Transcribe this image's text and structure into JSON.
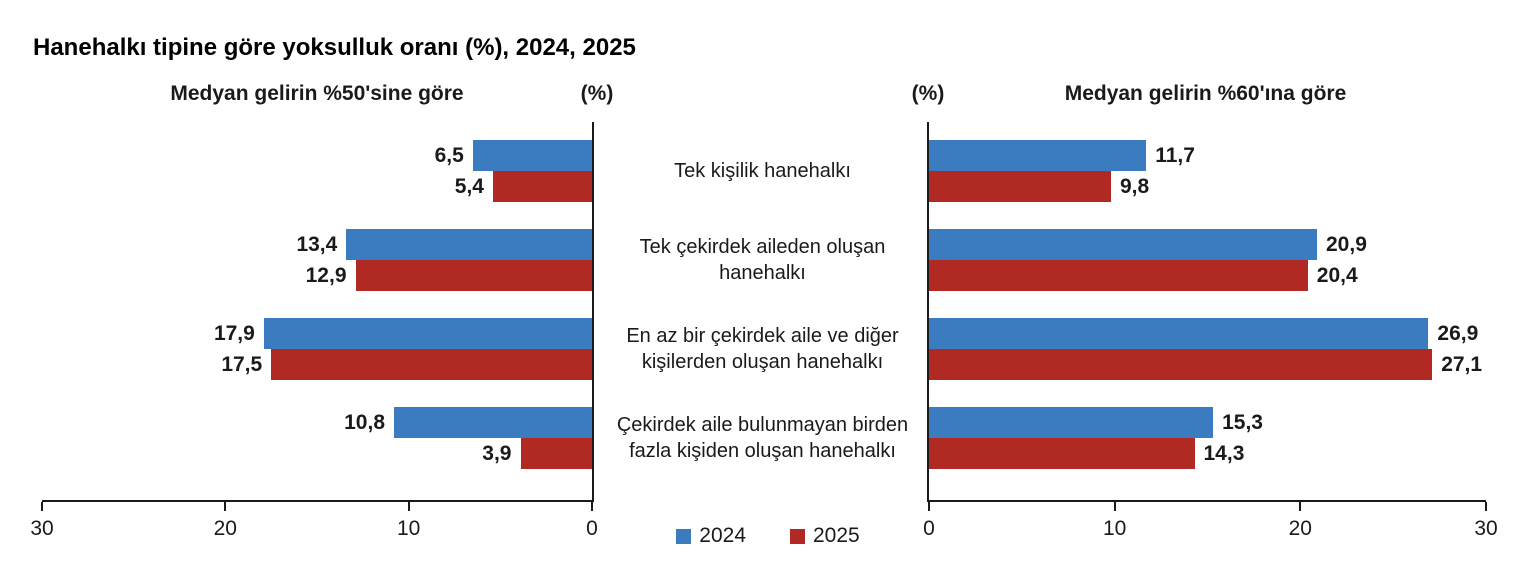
{
  "title": "Hanehalkı tipine göre yoksulluk oranı (%), 2024, 2025",
  "colors": {
    "series_2024": "#3B7BC0",
    "series_2025": "#B02A23",
    "axis": "#1a1a1a"
  },
  "categories": [
    "Tek kişilik hanehalkı",
    "Tek çekirdek aileden oluşan hanehalkı",
    "En az bir çekirdek aile ve diğer kişilerden oluşan hanehalkı",
    "Çekirdek aile bulunmayan birden fazla kişiden oluşan hanehalkı"
  ],
  "left_chart": {
    "subtitle": "Medyan gelirin %50'sine göre",
    "unit_label": "(%)"
  },
  "right_chart": {
    "subtitle": "Medyan gelirin %60'ına göre",
    "unit_label": "(%)"
  },
  "legend": {
    "items": [
      {
        "label": "2024",
        "color": "#3B7BC0"
      },
      {
        "label": "2025",
        "color": "#B02A23"
      }
    ]
  },
  "chart_data": [
    {
      "type": "bar",
      "orientation": "horizontal",
      "direction": "right-to-left",
      "title": "Medyan gelirin %50'sine göre",
      "unit": "(%)",
      "categories": [
        "Tek kişilik hanehalkı",
        "Tek çekirdek aileden oluşan hanehalkı",
        "En az bir çekirdek aile ve diğer kişilerden oluşan hanehalkı",
        "Çekirdek aile bulunmayan birden fazla kişiden oluşan hanehalkı"
      ],
      "series": [
        {
          "name": "2024",
          "color": "#3B7BC0",
          "values": [
            6.5,
            13.4,
            17.9,
            10.8
          ],
          "labels": [
            "6,5",
            "13,4",
            "17,9",
            "10,8"
          ]
        },
        {
          "name": "2025",
          "color": "#B02A23",
          "values": [
            5.4,
            12.9,
            17.5,
            3.9
          ],
          "labels": [
            "5,4",
            "12,9",
            "17,5",
            "3,9"
          ]
        }
      ],
      "xlim": [
        0,
        30
      ],
      "tick_values": [
        30,
        20,
        10,
        0
      ],
      "grid": false,
      "legend_position": "bottom-center"
    },
    {
      "type": "bar",
      "orientation": "horizontal",
      "direction": "left-to-right",
      "title": "Medyan gelirin %60'ına göre",
      "unit": "(%)",
      "categories": [
        "Tek kişilik hanehalkı",
        "Tek çekirdek aileden oluşan hanehalkı",
        "En az bir çekirdek aile ve diğer kişilerden oluşan hanehalkı",
        "Çekirdek aile bulunmayan birden fazla kişiden oluşan hanehalkı"
      ],
      "series": [
        {
          "name": "2024",
          "color": "#3B7BC0",
          "values": [
            11.7,
            20.9,
            26.9,
            15.3
          ],
          "labels": [
            "11,7",
            "20,9",
            "26,9",
            "15,3"
          ]
        },
        {
          "name": "2025",
          "color": "#B02A23",
          "values": [
            9.8,
            20.4,
            27.1,
            14.3
          ],
          "labels": [
            "9,8",
            "20,4",
            "27,1",
            "14,3"
          ]
        }
      ],
      "xlim": [
        0,
        30
      ],
      "tick_values": [
        0,
        10,
        20,
        30
      ],
      "grid": false,
      "legend_position": "bottom-center"
    }
  ]
}
